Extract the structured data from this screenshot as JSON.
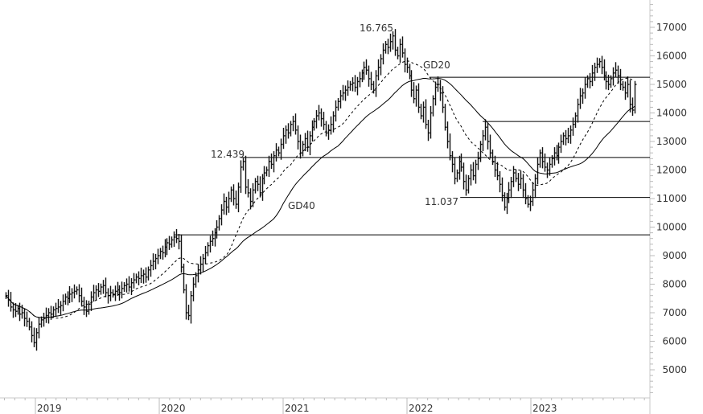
{
  "chart_data": {
    "type": "ohlc",
    "interval": "weekly",
    "start_date": "2018-10-05",
    "close": [
      7600,
      7450,
      7200,
      7100,
      7050,
      7150,
      6950,
      7000,
      6800,
      6700,
      6500,
      6200,
      5950,
      6300,
      6600,
      6750,
      6800,
      6900,
      7000,
      6950,
      7100,
      7150,
      7200,
      7250,
      7400,
      7550,
      7500,
      7650,
      7700,
      7750,
      7800,
      7600,
      7400,
      7200,
      7050,
      7300,
      7550,
      7700,
      7800,
      7750,
      7900,
      7950,
      7700,
      7600,
      7700,
      7650,
      7750,
      7800,
      7700,
      7850,
      7950,
      8000,
      7900,
      8050,
      8150,
      8250,
      8200,
      8300,
      8350,
      8250,
      8500,
      8650,
      8800,
      8900,
      9000,
      9150,
      9100,
      9300,
      9450,
      9400,
      9550,
      9650,
      9600,
      9500,
      8600,
      7800,
      7000,
      6900,
      7600,
      8000,
      8300,
      8500,
      8700,
      8900,
      9100,
      9350,
      9500,
      9600,
      9800,
      10000,
      10300,
      10600,
      10900,
      10700,
      11000,
      11300,
      11000,
      10800,
      11400,
      12100,
      12300,
      11400,
      11200,
      10900,
      11300,
      11600,
      11500,
      11200,
      11700,
      11900,
      12000,
      12300,
      12200,
      12500,
      12700,
      12600,
      12900,
      13200,
      13400,
      13300,
      13600,
      13700,
      13400,
      13000,
      12600,
      12900,
      13100,
      12800,
      13200,
      13500,
      13700,
      13900,
      14000,
      13800,
      13600,
      13300,
      13400,
      13600,
      13900,
      14200,
      14400,
      14600,
      14700,
      14800,
      14900,
      15000,
      15050,
      14900,
      15100,
      15200,
      15400,
      15600,
      15500,
      15200,
      15000,
      14800,
      15300,
      15600,
      15900,
      16200,
      16400,
      16300,
      16500,
      16700,
      16200,
      16000,
      16400,
      16100,
      15700,
      15600,
      15300,
      14800,
      14500,
      14800,
      14200,
      13900,
      14200,
      13600,
      13300,
      14000,
      14500,
      14900,
      15000,
      14700,
      14200,
      13500,
      13000,
      12500,
      12200,
      11700,
      11900,
      12300,
      12100,
      11600,
      11300,
      11700,
      12000,
      11800,
      12200,
      12400,
      12900,
      13200,
      13500,
      13000,
      12600,
      12300,
      12000,
      11800,
      11500,
      11100,
      10700,
      11000,
      11300,
      11600,
      11900,
      11700,
      11500,
      11700,
      11300,
      11000,
      10800,
      10900,
      11300,
      11700,
      12200,
      12600,
      12300,
      12100,
      12000,
      12200,
      12400,
      12600,
      12500,
      12800,
      13000,
      13200,
      13100,
      13200,
      13400,
      13600,
      13900,
      14300,
      14600,
      14700,
      15000,
      15200,
      15100,
      15400,
      15600,
      15700,
      15800,
      15600,
      15300,
      15100,
      15000,
      15200,
      15400,
      15500,
      15300,
      15000,
      14900,
      14700,
      15000,
      14300,
      14100,
      15000
    ],
    "moving_averages": [
      {
        "name": "GD20",
        "period": 20,
        "style": "dashed"
      },
      {
        "name": "GD40",
        "period": 40,
        "style": "solid"
      }
    ],
    "levels": [
      {
        "value": 15250,
        "from": "2022-03-08"
      },
      {
        "value": 13700,
        "from": "2022-08-12"
      },
      {
        "value": 12439,
        "from": "2020-08-28"
      },
      {
        "value": 11037,
        "from": "2022-06-07"
      },
      {
        "value": 9730,
        "from": "2020-02-14"
      }
    ],
    "annotations": [
      {
        "text": "16.765",
        "value": 16765
      },
      {
        "text": "12.439",
        "value": 12439
      },
      {
        "text": "11.037",
        "value": 11037
      }
    ],
    "ylim": [
      4000,
      17800
    ],
    "yticks": [
      "5000",
      "6000",
      "7000",
      "8000",
      "9000",
      "10000",
      "11000",
      "12000",
      "13000",
      "14000",
      "15000",
      "16000",
      "17000"
    ],
    "xticks": [
      "2019",
      "2020",
      "2021",
      "2022",
      "2023"
    ],
    "grid": false,
    "color": "#000000",
    "xlabel": "",
    "ylabel": ""
  }
}
